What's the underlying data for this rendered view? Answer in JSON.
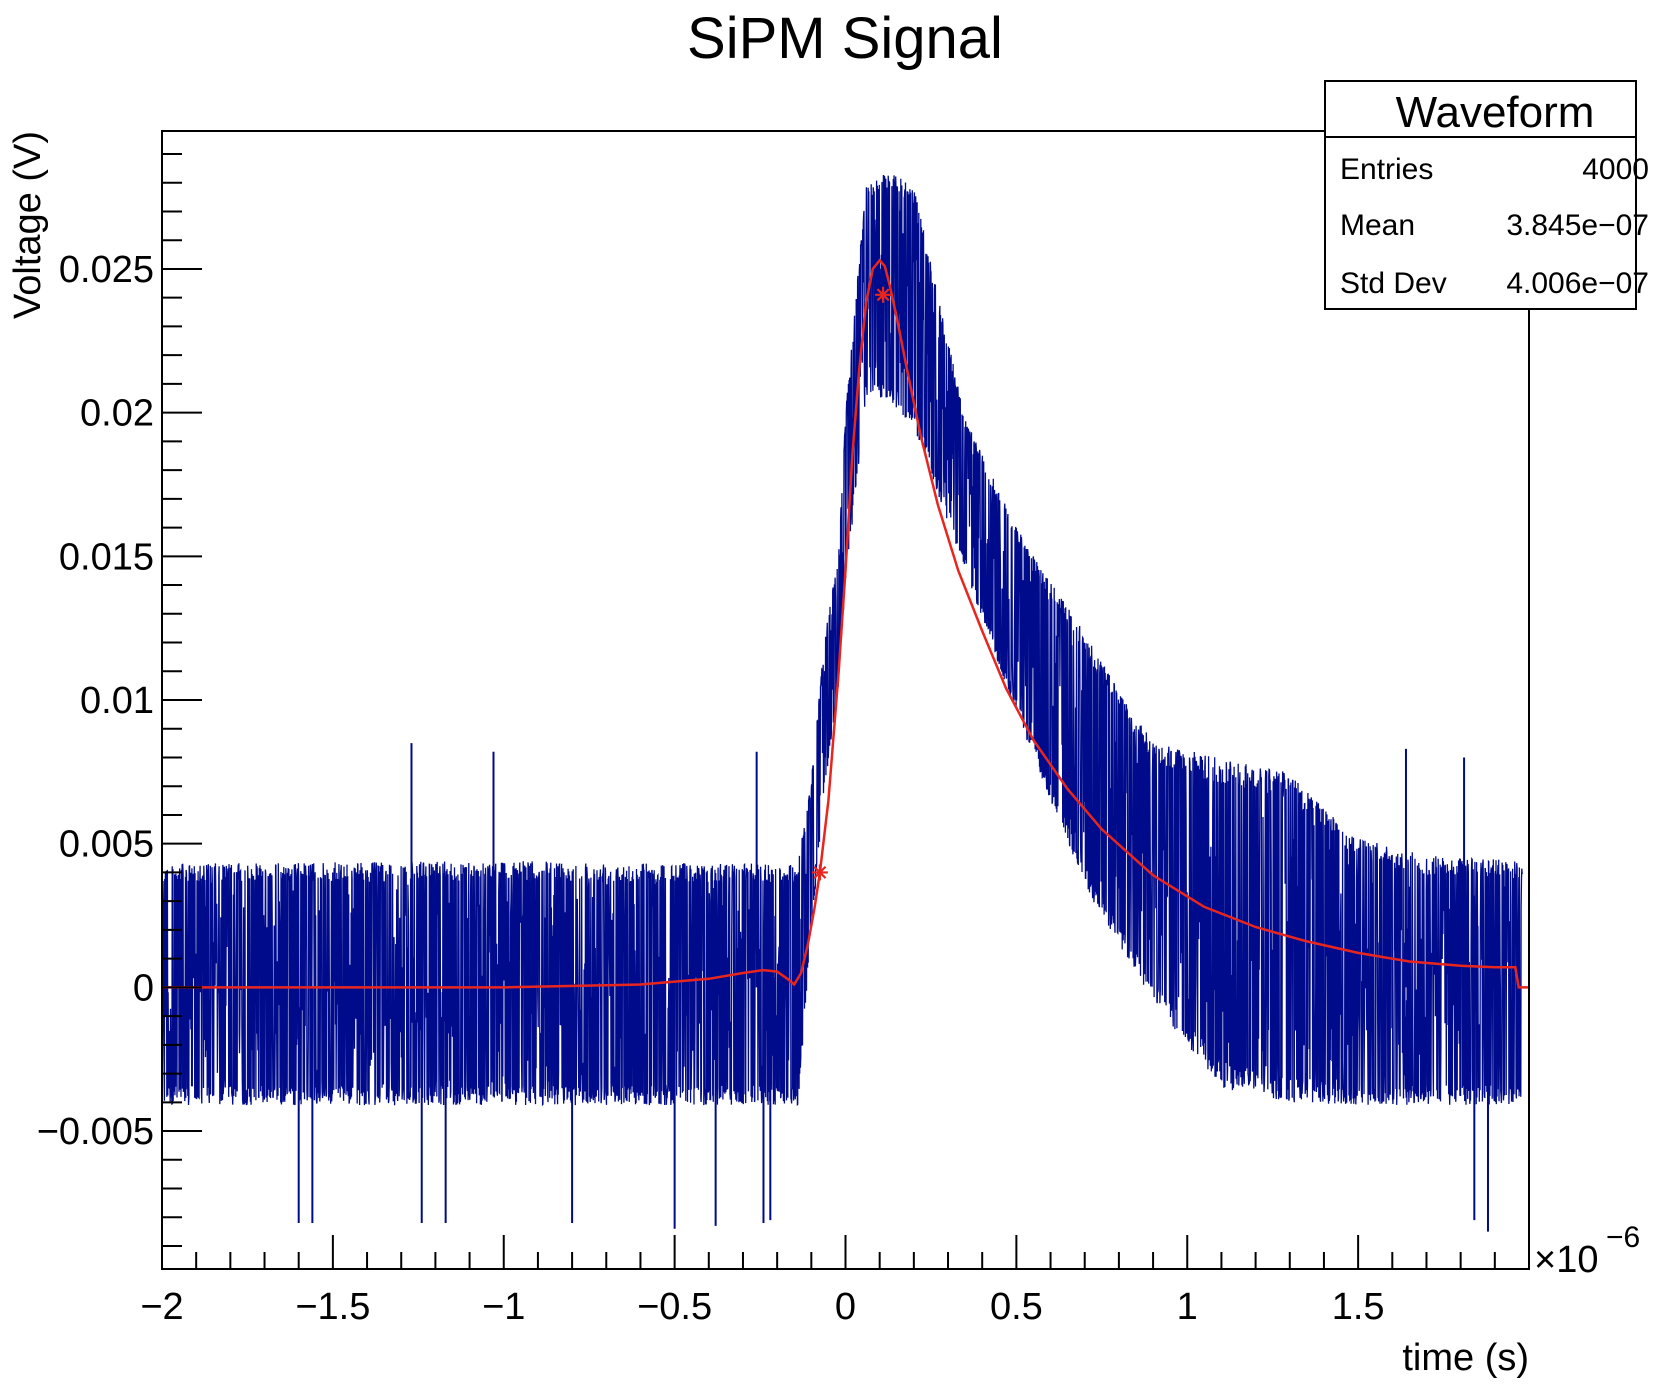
{
  "chart_data": {
    "type": "line",
    "title": "SiPM Signal",
    "xlabel": "time (s)",
    "ylabel": "Voltage (V)",
    "x_multiplier_label": "×10",
    "x_multiplier_exp": "−6",
    "xlim": [
      -2.0,
      2.0
    ],
    "ylim": [
      -0.0098,
      0.0298
    ],
    "x_unit_scale": 1e-06,
    "x_ticks": [
      {
        "value": -2.0,
        "label": "−2"
      },
      {
        "value": -1.5,
        "label": "−1.5"
      },
      {
        "value": -1.0,
        "label": "−1"
      },
      {
        "value": -0.5,
        "label": "−0.5"
      },
      {
        "value": 0.0,
        "label": "0"
      },
      {
        "value": 0.5,
        "label": "0.5"
      },
      {
        "value": 1.0,
        "label": "1"
      },
      {
        "value": 1.5,
        "label": "1.5"
      }
    ],
    "y_ticks": [
      {
        "value": -0.005,
        "label": "−0.005"
      },
      {
        "value": 0.0,
        "label": "0"
      },
      {
        "value": 0.005,
        "label": "0.005"
      },
      {
        "value": 0.01,
        "label": "0.01"
      },
      {
        "value": 0.015,
        "label": "0.015"
      },
      {
        "value": 0.02,
        "label": "0.02"
      },
      {
        "value": 0.025,
        "label": "0.025"
      }
    ],
    "series": [
      {
        "color": "#000b8c",
        "envelope_x": [
          -2.0,
          -1.0,
          -0.2,
          -0.14,
          -0.1,
          -0.06,
          -0.02,
          0.0,
          0.06,
          0.12,
          0.2,
          0.35,
          0.5,
          0.7,
          0.9,
          1.1,
          1.3,
          1.5,
          1.7,
          1.98
        ],
        "envelope_lo": [
          -0.0041,
          -0.0041,
          -0.0041,
          -0.0042,
          0.002,
          0.007,
          0.0105,
          0.014,
          0.0205,
          0.0205,
          0.0195,
          0.0145,
          0.0095,
          0.0035,
          -0.0005,
          -0.0035,
          -0.004,
          -0.0041,
          -0.0041,
          -0.0041
        ],
        "envelope_hi": [
          0.0043,
          0.0044,
          0.0043,
          0.0043,
          0.0073,
          0.0122,
          0.0152,
          0.02,
          0.0279,
          0.0284,
          0.0279,
          0.0198,
          0.016,
          0.0123,
          0.0085,
          0.008,
          0.0075,
          0.0052,
          0.0046,
          0.0044
        ],
        "spikes": [
          {
            "x": -1.27,
            "y": 0.0085
          },
          {
            "x": -1.03,
            "y": 0.0082
          },
          {
            "x": -0.26,
            "y": 0.0082
          },
          {
            "x": 1.81,
            "y": 0.008
          },
          {
            "x": 1.64,
            "y": 0.0083
          },
          {
            "x": -1.6,
            "y": -0.0082
          },
          {
            "x": -1.56,
            "y": -0.0082
          },
          {
            "x": -1.24,
            "y": -0.0082
          },
          {
            "x": -1.17,
            "y": -0.0082
          },
          {
            "x": -0.8,
            "y": -0.0082
          },
          {
            "x": -0.5,
            "y": -0.0084
          },
          {
            "x": -0.38,
            "y": -0.0083
          },
          {
            "x": -0.22,
            "y": -0.0081
          },
          {
            "x": -0.24,
            "y": -0.0082
          },
          {
            "x": 1.88,
            "y": -0.0085
          },
          {
            "x": 1.84,
            "y": -0.0081
          }
        ]
      },
      {
        "color": "#e8261e",
        "x": [
          -2.0,
          -1.5,
          -1.0,
          -0.6,
          -0.4,
          -0.3,
          -0.24,
          -0.2,
          -0.17,
          -0.15,
          -0.13,
          -0.11,
          -0.09,
          -0.075,
          -0.05,
          -0.02,
          0.0,
          0.02,
          0.04,
          0.06,
          0.08,
          0.1,
          0.115,
          0.13,
          0.15,
          0.18,
          0.22,
          0.27,
          0.33,
          0.4,
          0.47,
          0.55,
          0.65,
          0.75,
          0.9,
          1.05,
          1.2,
          1.35,
          1.5,
          1.65,
          1.8,
          1.9,
          1.96,
          1.97,
          2.0
        ],
        "y": [
          0.0,
          0.0,
          0.0,
          0.0001,
          0.0003,
          0.0005,
          0.0006,
          0.00055,
          0.0003,
          0.0001,
          0.0005,
          0.0015,
          0.0028,
          0.004,
          0.0065,
          0.011,
          0.0145,
          0.0185,
          0.0215,
          0.0238,
          0.025,
          0.0253,
          0.0251,
          0.0244,
          0.0233,
          0.0215,
          0.0192,
          0.0168,
          0.0145,
          0.0124,
          0.0104,
          0.0086,
          0.0069,
          0.0055,
          0.0039,
          0.0028,
          0.0021,
          0.0016,
          0.0012,
          0.0009,
          0.00075,
          0.0007,
          0.0007,
          0.0,
          0.0
        ],
        "markers": [
          {
            "x": -0.075,
            "y": 0.004
          },
          {
            "x": 0.11,
            "y": 0.0241
          }
        ]
      }
    ]
  },
  "stats_box": {
    "title": "Waveform",
    "rows": [
      {
        "label": "Entries",
        "value": "4000"
      },
      {
        "label": "Mean",
        "value": "3.845e−07"
      },
      {
        "label": "Std Dev",
        "value": "4.006e−07"
      }
    ]
  }
}
